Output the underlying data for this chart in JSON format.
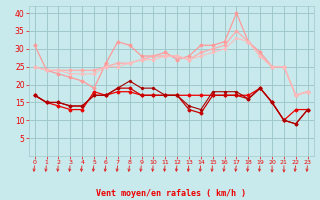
{
  "x": [
    0,
    1,
    2,
    3,
    4,
    5,
    6,
    7,
    8,
    9,
    10,
    11,
    12,
    13,
    14,
    15,
    16,
    17,
    18,
    19,
    20,
    21,
    22,
    23
  ],
  "series": [
    {
      "values": [
        17,
        15,
        14,
        13,
        13,
        18,
        17,
        18,
        18,
        17,
        17,
        17,
        17,
        17,
        17,
        17,
        17,
        17,
        17,
        19,
        15,
        10,
        13,
        13
      ],
      "color": "#EE0000",
      "lw": 0.9,
      "marker": "D",
      "ms": 1.5
    },
    {
      "values": [
        17,
        15,
        15,
        14,
        14,
        17,
        17,
        19,
        19,
        17,
        17,
        17,
        17,
        13,
        12,
        17,
        17,
        17,
        16,
        19,
        15,
        10,
        9,
        13
      ],
      "color": "#CC0000",
      "lw": 0.9,
      "marker": "D",
      "ms": 1.5
    },
    {
      "values": [
        17,
        15,
        15,
        14,
        14,
        17,
        17,
        19,
        21,
        19,
        19,
        17,
        17,
        14,
        13,
        18,
        18,
        18,
        16,
        19,
        15,
        10,
        9,
        13
      ],
      "color": "#AA0000",
      "lw": 0.8,
      "marker": "D",
      "ms": 1.2
    },
    {
      "values": [
        31,
        24,
        23,
        22,
        21,
        19,
        26,
        32,
        31,
        28,
        28,
        29,
        27,
        28,
        31,
        31,
        32,
        40,
        32,
        29,
        25,
        25,
        17,
        18
      ],
      "color": "#FF9999",
      "lw": 0.9,
      "marker": "D",
      "ms": 1.5
    },
    {
      "values": [
        25,
        24,
        24,
        24,
        24,
        24,
        25,
        26,
        26,
        27,
        28,
        28,
        28,
        27,
        29,
        30,
        31,
        35,
        32,
        28,
        25,
        25,
        17,
        18
      ],
      "color": "#FFAAAA",
      "lw": 0.9,
      "marker": "D",
      "ms": 1.5
    },
    {
      "values": [
        25,
        24,
        24,
        23,
        23,
        23,
        25,
        25,
        26,
        27,
        27,
        28,
        28,
        27,
        28,
        29,
        30,
        33,
        32,
        28,
        25,
        25,
        17,
        18
      ],
      "color": "#FFBBBB",
      "lw": 0.8,
      "marker": "D",
      "ms": 1.2
    }
  ],
  "xlabel": "Vent moyen/en rafales ( km/h )",
  "xlim": [
    -0.5,
    23.5
  ],
  "ylim": [
    0,
    42
  ],
  "yticks": [
    5,
    10,
    15,
    20,
    25,
    30,
    35,
    40
  ],
  "xticks": [
    0,
    1,
    2,
    3,
    4,
    5,
    6,
    7,
    8,
    9,
    10,
    11,
    12,
    13,
    14,
    15,
    16,
    17,
    18,
    19,
    20,
    21,
    22,
    23
  ],
  "bg_color": "#C8EAEC",
  "grid_color": "#A0C8CC",
  "label_color": "#EE0000",
  "arrow_color": "#DD2222"
}
